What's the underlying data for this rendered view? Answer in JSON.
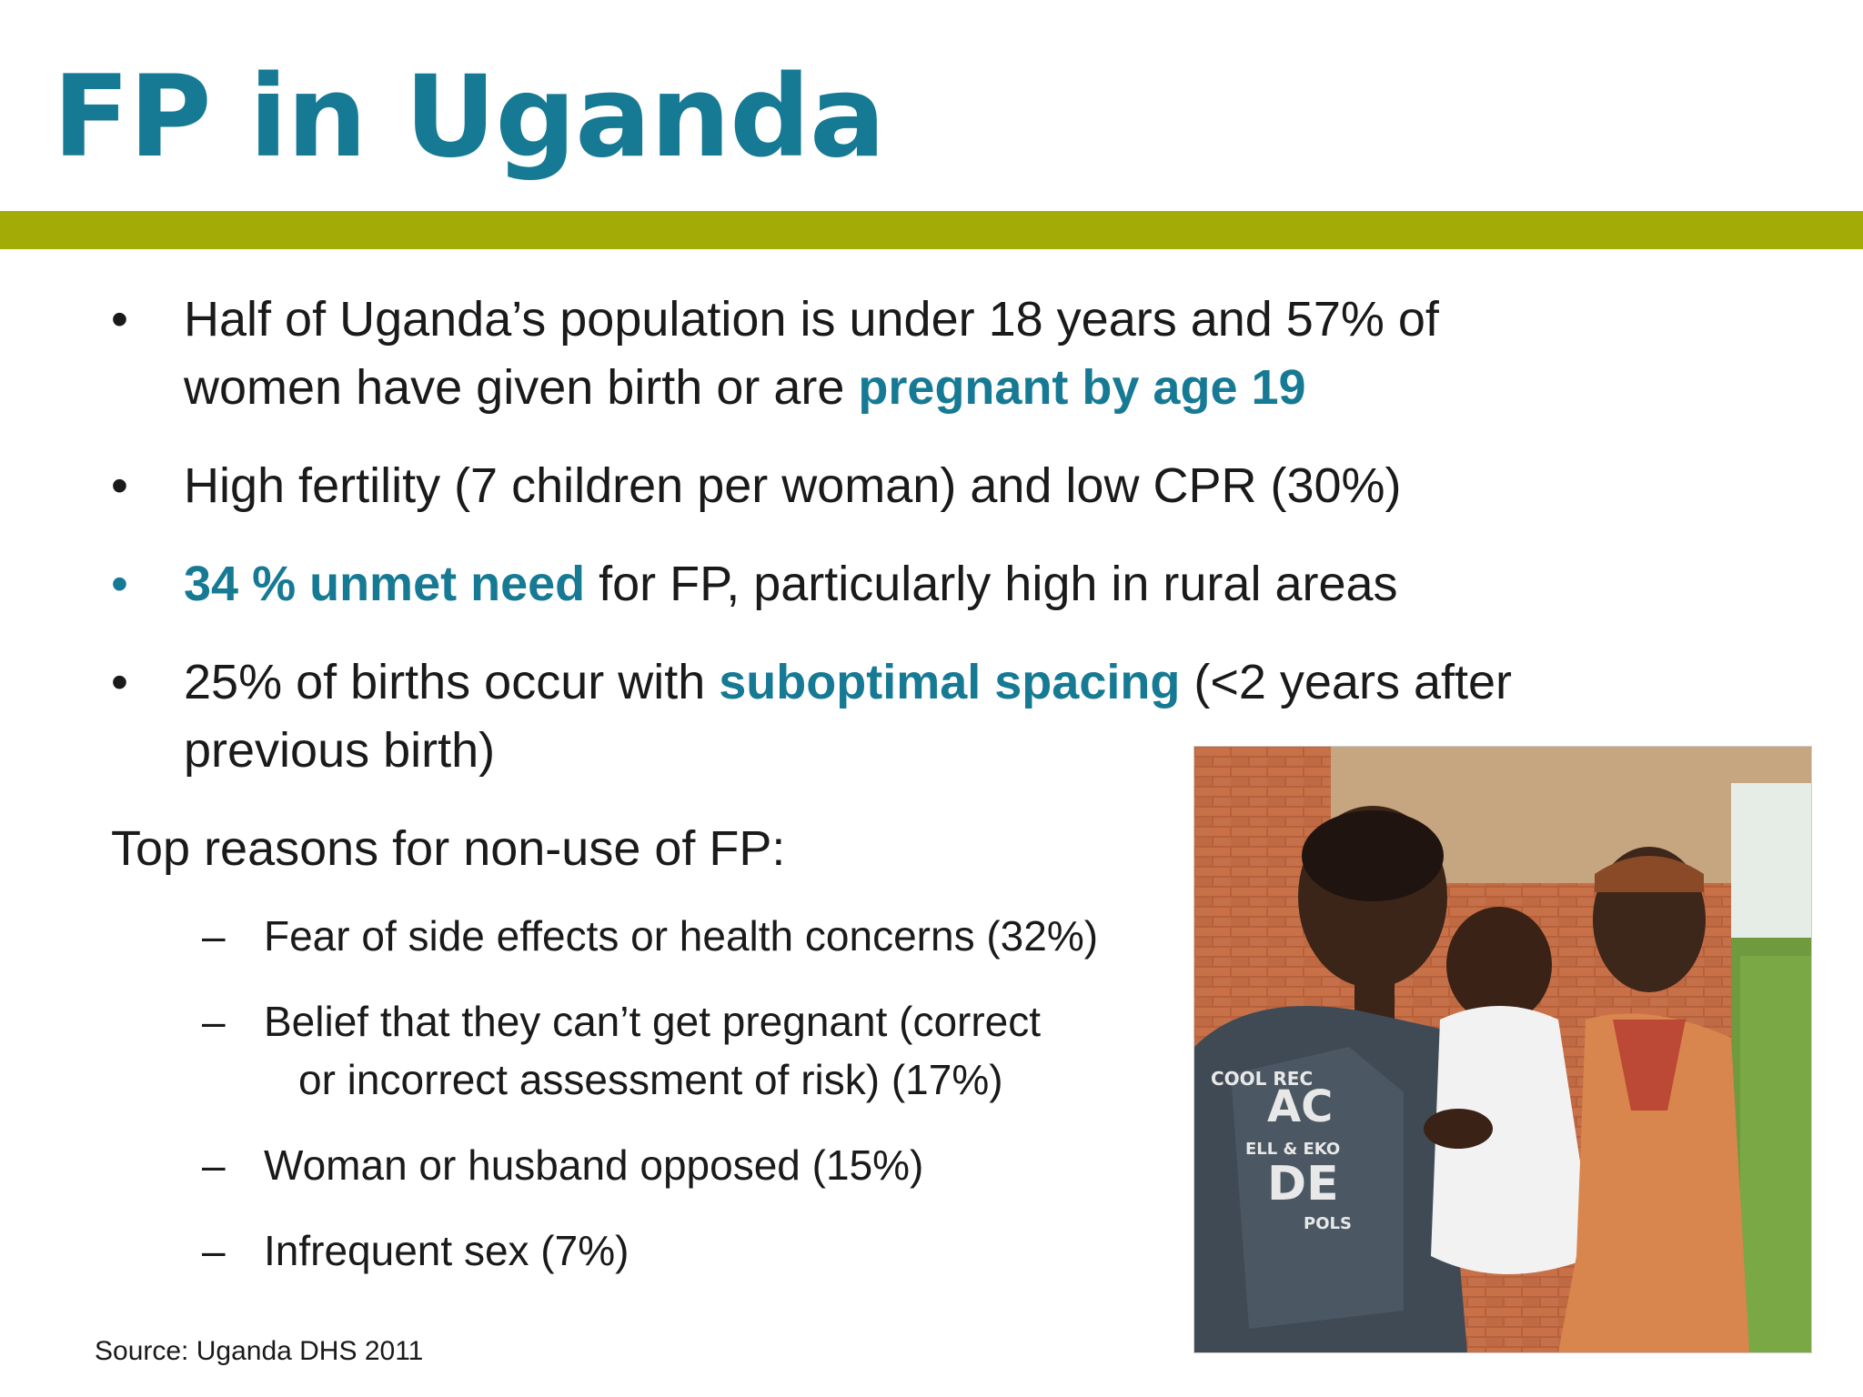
{
  "slide": {
    "title": "FP in Uganda",
    "accent_color": "#177a94",
    "bar_color": "#a3ab06"
  },
  "bullets": [
    {
      "parts": [
        "Half of Uganda’s population is under 18 years and 57% of women have given birth or are ",
        "pregnant by age 19",
        ""
      ]
    },
    {
      "parts": [
        "High fertility (7 children per woman) and low CPR (30%)",
        "",
        ""
      ]
    },
    {
      "parts": [
        "",
        "34 % unmet need",
        " for FP, particularly high in rural areas"
      ]
    },
    {
      "parts": [
        "25% of births occur with ",
        "suboptimal spacing",
        " (<2 years after previous birth)"
      ]
    }
  ],
  "bullet_symbol": "•",
  "reasons_heading": "Top reasons for non-use of FP:",
  "reasons": [
    {
      "line1": "Fear of side effects or health concerns (32%)",
      "line2": ""
    },
    {
      "line1": "Belief that they can’t get pregnant (correct",
      "line2": "or incorrect assessment of risk) (17%)"
    },
    {
      "line1": "Woman or husband opposed (15%)",
      "line2": ""
    },
    {
      "line1": "Infrequent sex (7%)",
      "line2": ""
    }
  ],
  "dash_symbol": "–",
  "source": "Source: Uganda DHS 2011",
  "photo": {
    "shirt_text": [
      "COOL REC",
      "AC",
      "ELL & EKO",
      "DE",
      "POLS"
    ]
  }
}
